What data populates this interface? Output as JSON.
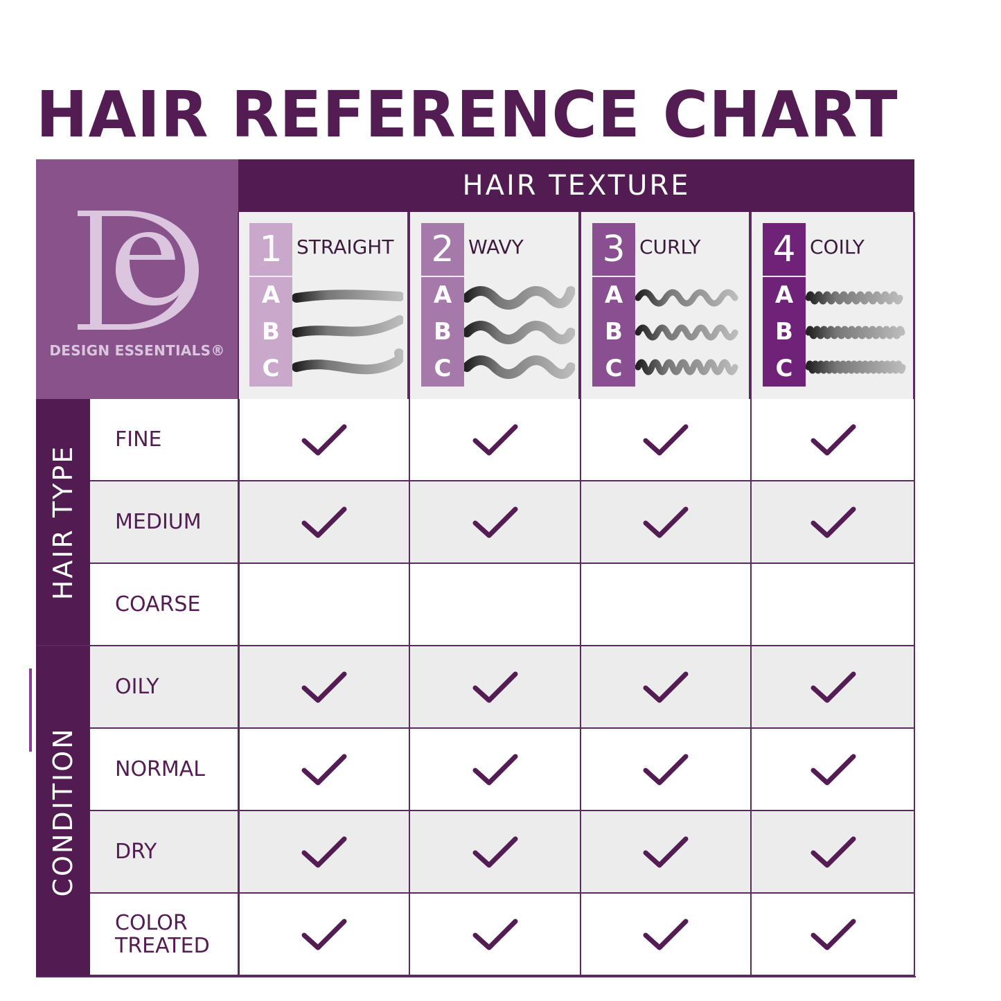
{
  "title": "HAIR REFERENCE CHART",
  "brand": {
    "name": "DESIGN ESSENTIALS®",
    "logo_letters": "DE"
  },
  "header": "HAIR TEXTURE",
  "textures": [
    {
      "num": "1",
      "label": "STRAIGHT",
      "subtypes": [
        "A",
        "B",
        "C"
      ],
      "color": "#c9a8cc"
    },
    {
      "num": "2",
      "label": "WAVY",
      "subtypes": [
        "A",
        "B",
        "C"
      ],
      "color": "#a57aaa"
    },
    {
      "num": "3",
      "label": "CURLY",
      "subtypes": [
        "A",
        "B",
        "C"
      ],
      "color": "#8a4f91"
    },
    {
      "num": "4",
      "label": "COILY",
      "subtypes": [
        "A",
        "B",
        "C"
      ],
      "color": "#6e2378"
    }
  ],
  "groups": {
    "hair_type": "HAIR TYPE",
    "condition": "CONDITION"
  },
  "rows": [
    {
      "label": "FINE",
      "checks": [
        true,
        true,
        true,
        true
      ]
    },
    {
      "label": "MEDIUM",
      "checks": [
        true,
        true,
        true,
        true
      ]
    },
    {
      "label": "COARSE",
      "checks": [
        false,
        false,
        false,
        false
      ]
    },
    {
      "label": "OILY",
      "checks": [
        true,
        true,
        true,
        true
      ]
    },
    {
      "label": "NORMAL",
      "checks": [
        true,
        true,
        true,
        true
      ]
    },
    {
      "label": "DRY",
      "checks": [
        true,
        true,
        true,
        true
      ]
    },
    {
      "label": "COLOR TREATED",
      "checks": [
        true,
        true,
        true,
        true
      ]
    }
  ],
  "colors": {
    "primary": "#521b51",
    "logo_panel": "#88528b",
    "check": "#531c52",
    "grey_row": "#ececec"
  }
}
